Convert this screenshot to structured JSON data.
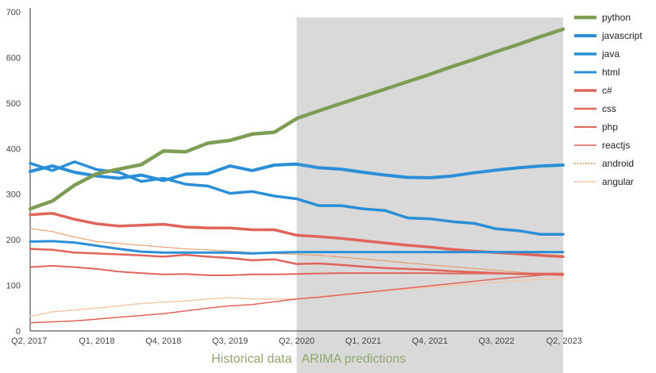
{
  "chart_data": {
    "type": "line",
    "title": "",
    "xlabel": "",
    "ylabel": "",
    "x_ticks": [
      "Q2, 2017",
      "Q1, 2018",
      "Q4, 2018",
      "Q3, 2019",
      "Q2, 2020",
      "Q1, 2021",
      "Q4, 2021",
      "Q3, 2022",
      "Q2, 2023"
    ],
    "x": [
      "Q2, 2017",
      "Q3, 2017",
      "Q4, 2017",
      "Q1, 2018",
      "Q2, 2018",
      "Q3, 2018",
      "Q4, 2018",
      "Q1, 2019",
      "Q2, 2019",
      "Q3, 2019",
      "Q4, 2019",
      "Q1, 2020",
      "Q2, 2020",
      "Q3, 2020",
      "Q4, 2020",
      "Q1, 2021",
      "Q2, 2021",
      "Q3, 2021",
      "Q4, 2021",
      "Q1, 2022",
      "Q2, 2022",
      "Q3, 2022",
      "Q4, 2022",
      "Q1, 2023",
      "Q2, 2023"
    ],
    "ylim": [
      0,
      700
    ],
    "y_ticks": [
      0,
      100,
      200,
      300,
      400,
      500,
      600,
      700
    ],
    "grid": false,
    "legend_position": "right",
    "regions": [
      {
        "label": "Historical data",
        "from": "Q2, 2017",
        "to": "Q2, 2020",
        "shaded": false
      },
      {
        "label": "ARIMA predictions",
        "from": "Q2, 2020",
        "to": "Q2, 2023",
        "shaded": true,
        "color": "#d9d9d9"
      }
    ],
    "series": [
      {
        "name": "python",
        "color": "#7e9d54",
        "width": 4.5,
        "values": [
          268,
          285,
          320,
          345,
          355,
          365,
          395,
          393,
          412,
          418,
          432,
          436,
          466,
          483,
          499,
          515,
          531,
          547,
          563,
          580,
          596,
          613,
          629,
          646,
          662
        ]
      },
      {
        "name": "javascript",
        "color": "#2a8fd6",
        "width": 4,
        "values": [
          350,
          362,
          348,
          340,
          335,
          342,
          330,
          344,
          345,
          362,
          352,
          364,
          366,
          358,
          355,
          348,
          342,
          337,
          336,
          340,
          347,
          353,
          358,
          362,
          364
        ]
      },
      {
        "name": "java",
        "color": "#2a8fd6",
        "width": 3.5,
        "values": [
          368,
          352,
          371,
          354,
          348,
          328,
          335,
          322,
          318,
          302,
          306,
          296,
          290,
          275,
          275,
          268,
          264,
          248,
          246,
          240,
          236,
          224,
          220,
          212,
          212
        ]
      },
      {
        "name": "html",
        "color": "#2a8fd6",
        "width": 3,
        "values": [
          196,
          197,
          194,
          187,
          180,
          174,
          172,
          172,
          172,
          172,
          170,
          172,
          173,
          173,
          173,
          173,
          173,
          173,
          173,
          173,
          173,
          173,
          173,
          173,
          173
        ]
      },
      {
        "name": "c#",
        "color": "#e0645a",
        "width": 3.5,
        "values": [
          255,
          258,
          245,
          235,
          230,
          232,
          234,
          228,
          226,
          226,
          222,
          222,
          210,
          207,
          203,
          198,
          193,
          188,
          184,
          179,
          175,
          172,
          169,
          166,
          163
        ]
      },
      {
        "name": "css",
        "color": "#e0645a",
        "width": 2.5,
        "values": [
          180,
          178,
          172,
          170,
          168,
          166,
          163,
          167,
          163,
          160,
          155,
          157,
          147,
          148,
          145,
          141,
          138,
          136,
          134,
          131,
          129,
          127,
          125,
          124,
          123
        ]
      },
      {
        "name": "php",
        "color": "#e0645a",
        "width": 2,
        "values": [
          140,
          143,
          140,
          136,
          130,
          127,
          124,
          125,
          122,
          122,
          124,
          124,
          125,
          126,
          127,
          127,
          127,
          127,
          127,
          126,
          126,
          126,
          126,
          126,
          126
        ]
      },
      {
        "name": "reactjs",
        "color": "#e0645a",
        "width": 1.5,
        "values": [
          18,
          20,
          22,
          26,
          30,
          34,
          38,
          44,
          50,
          55,
          58,
          64,
          70,
          74,
          79,
          84,
          89,
          94,
          99,
          104,
          109,
          114,
          118,
          122,
          126
        ]
      },
      {
        "name": "android",
        "color": "#e8905a",
        "width": 1.2,
        "dashed": true,
        "values": [
          225,
          218,
          206,
          196,
          192,
          188,
          184,
          180,
          178,
          175,
          172,
          170,
          168,
          166,
          162,
          158,
          154,
          149,
          145,
          141,
          137,
          133,
          129,
          125,
          121
        ]
      },
      {
        "name": "angular",
        "color": "#f3c9a8",
        "width": 1.5,
        "values": [
          32,
          42,
          46,
          50,
          55,
          60,
          63,
          66,
          70,
          73,
          70,
          70,
          70,
          75,
          80,
          84,
          88,
          92,
          96,
          100,
          103,
          107,
          110,
          113,
          116
        ]
      }
    ]
  }
}
